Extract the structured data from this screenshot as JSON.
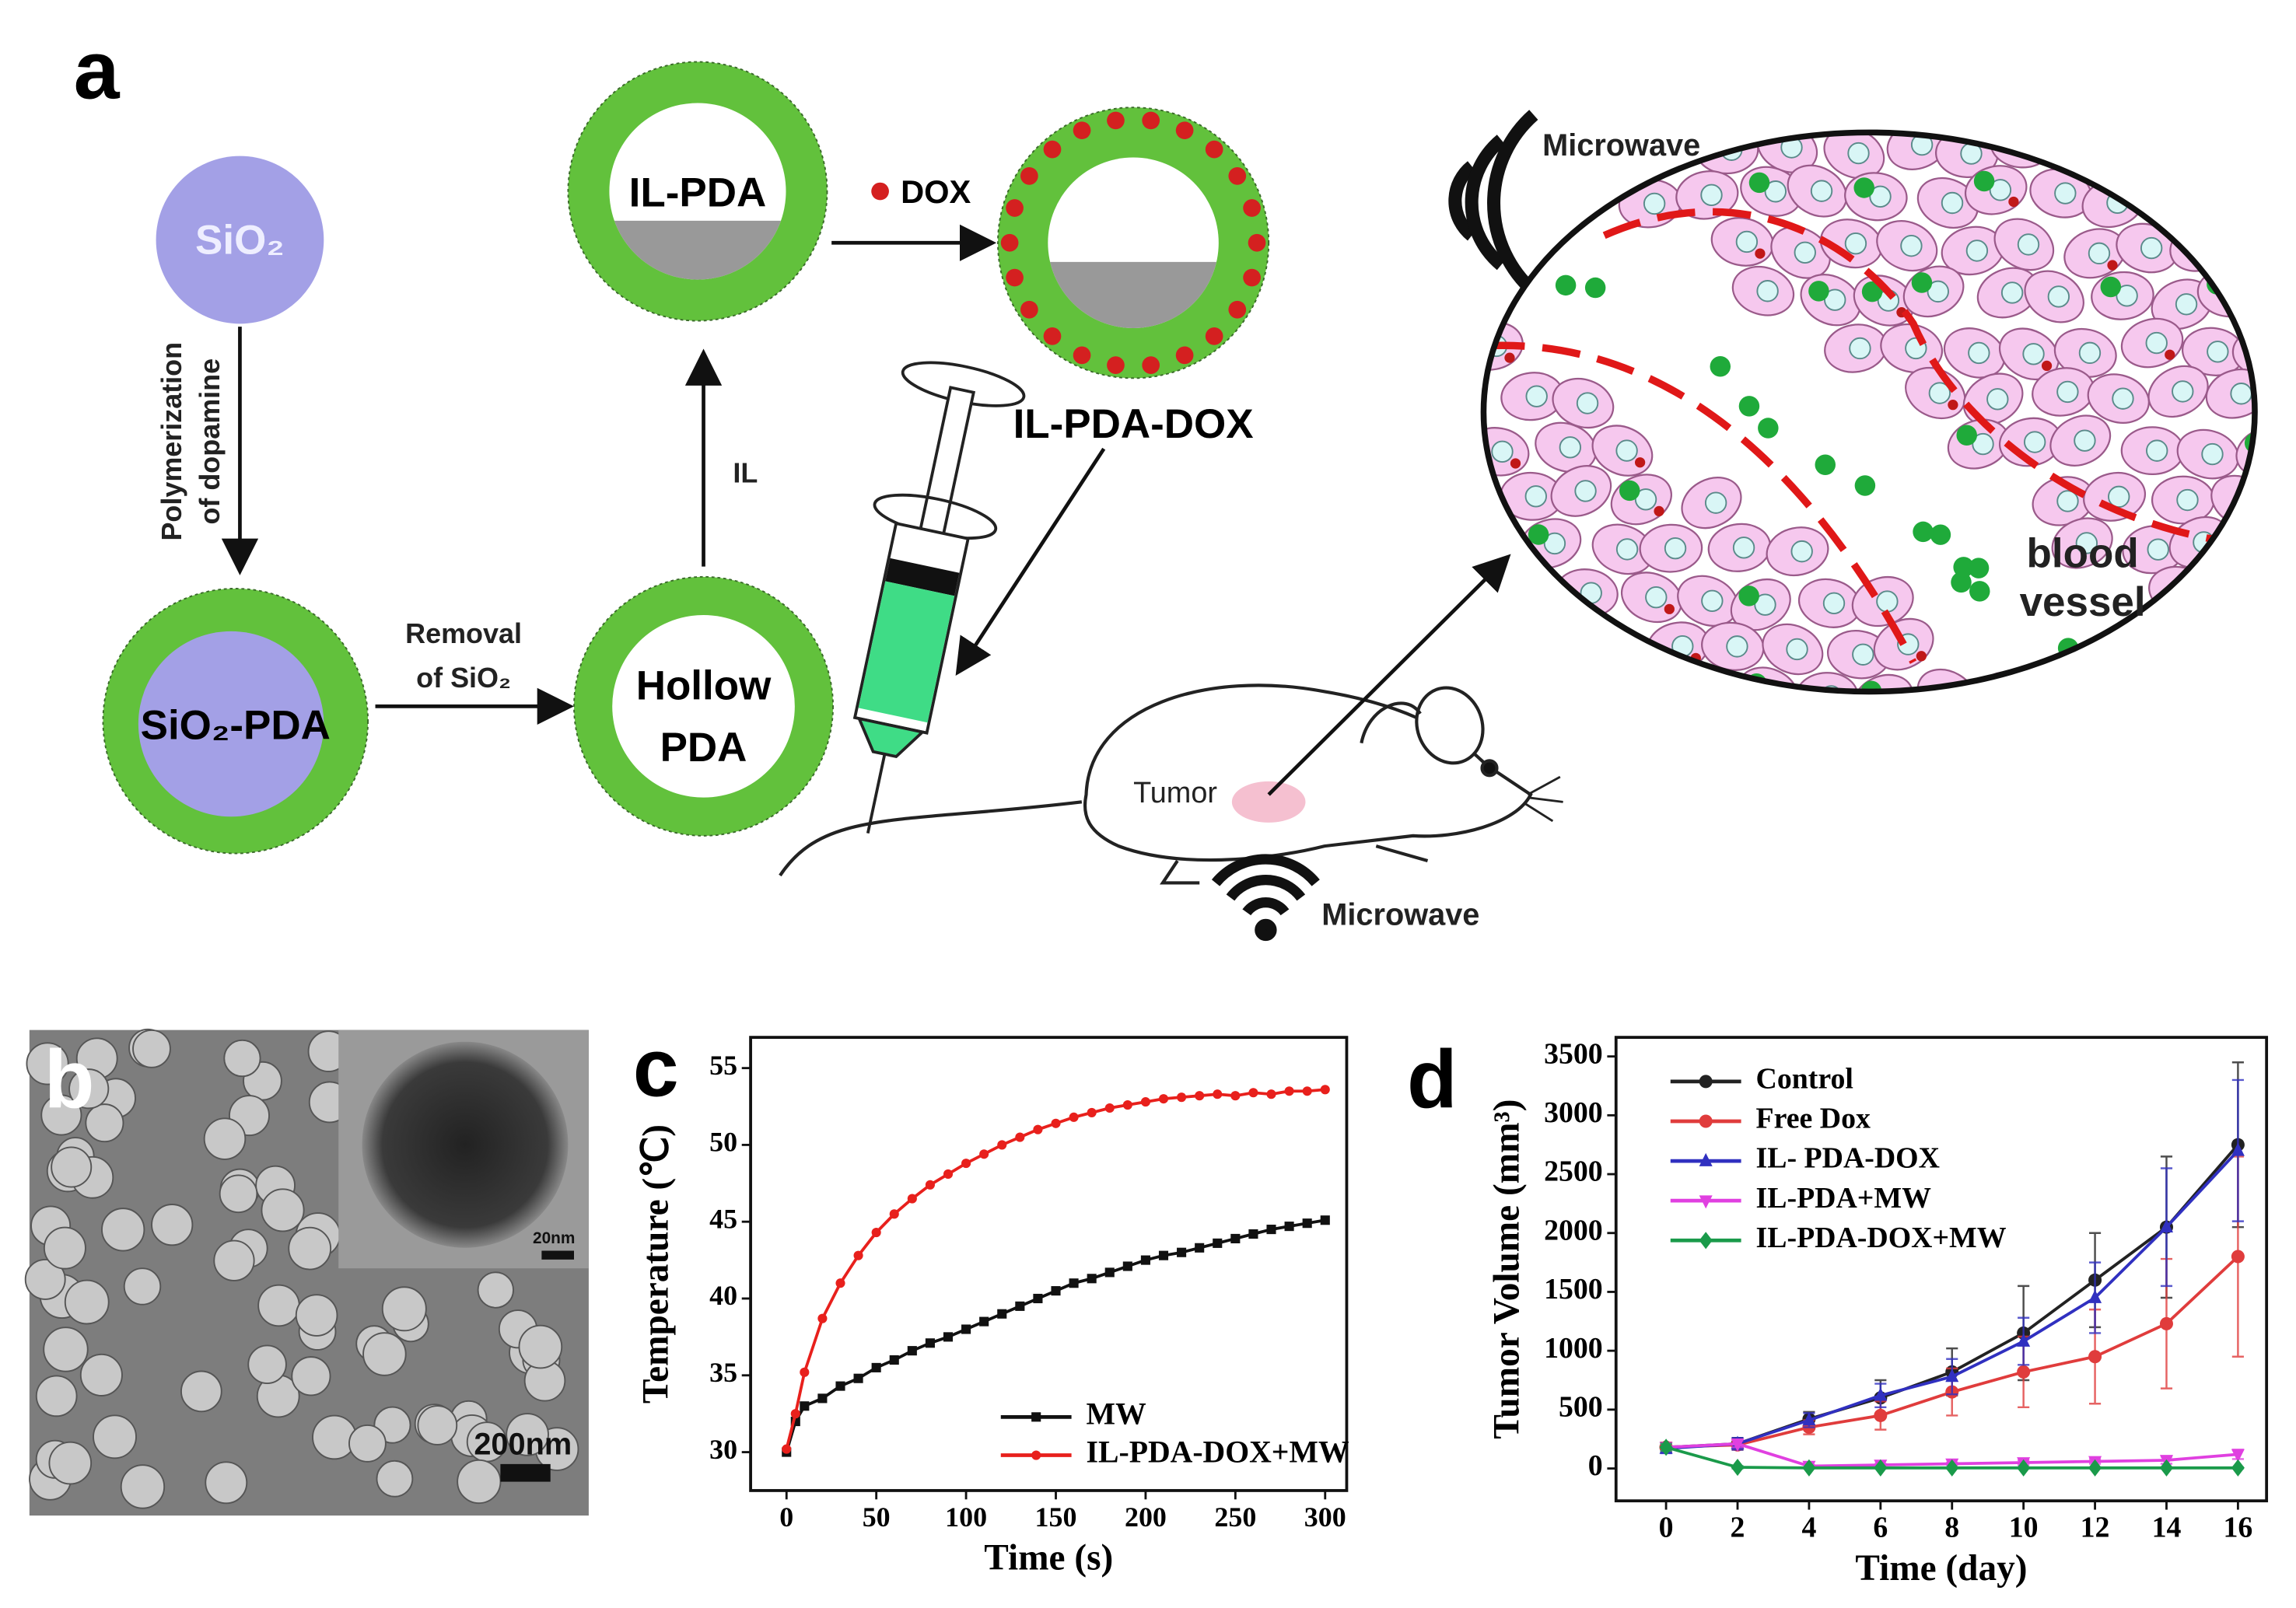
{
  "panel_labels": [
    "a",
    "b",
    "c",
    "d"
  ],
  "diagram": {
    "sio2": "SiO₂",
    "polymerization": [
      "Polymerization",
      "of dopamine"
    ],
    "sio2_pda": "SiO₂-PDA",
    "removal": [
      "Removal",
      "of SiO₂"
    ],
    "hollow_pda": [
      "Hollow",
      "PDA"
    ],
    "il": "IL",
    "il_pda": "IL-PDA",
    "dox": "DOX",
    "il_pda_dox": "IL-PDA-DOX",
    "microwave_top": "Microwave",
    "microwave_bottom": "Microwave",
    "tumor": "Tumor",
    "blood_vessel": [
      "blood",
      "vessel"
    ]
  },
  "micrograph": {
    "inset_scale": "20nm",
    "scale": "200nm"
  },
  "chart_data": [
    {
      "type": "line",
      "x": [
        0,
        5,
        10,
        20,
        30,
        40,
        50,
        60,
        70,
        80,
        90,
        100,
        110,
        120,
        130,
        140,
        150,
        160,
        170,
        180,
        190,
        200,
        210,
        220,
        230,
        240,
        250,
        260,
        270,
        280,
        290,
        300
      ],
      "x_label": "Time (s)",
      "y_label": "Temperature (℃)",
      "xlim": [
        -20,
        312
      ],
      "ylim": [
        27.5,
        57
      ],
      "xticks": [
        0,
        50,
        100,
        150,
        200,
        250,
        300
      ],
      "yticks": [
        30,
        35,
        40,
        45,
        50,
        55
      ],
      "legend": "lower right",
      "series": [
        {
          "name": "MW",
          "color": "#111111",
          "marker": "square",
          "values": [
            30,
            32,
            33,
            33.5,
            34.3,
            34.8,
            35.5,
            36,
            36.6,
            37.1,
            37.5,
            38,
            38.5,
            39,
            39.5,
            40,
            40.5,
            41,
            41.3,
            41.7,
            42.1,
            42.5,
            42.8,
            43,
            43.3,
            43.6,
            43.9,
            44.2,
            44.5,
            44.7,
            44.9,
            45.1
          ]
        },
        {
          "name": "IL-PDA-DOX+MW",
          "color": "#e8201c",
          "marker": "circle",
          "values": [
            30.2,
            32.5,
            35.2,
            38.7,
            41,
            42.8,
            44.3,
            45.5,
            46.5,
            47.4,
            48.1,
            48.8,
            49.4,
            50,
            50.5,
            51,
            51.4,
            51.8,
            52.1,
            52.4,
            52.6,
            52.8,
            53,
            53.1,
            53.2,
            53.3,
            53.2,
            53.4,
            53.3,
            53.5,
            53.5,
            53.6
          ]
        }
      ]
    },
    {
      "type": "line",
      "x": [
        0,
        2,
        4,
        6,
        8,
        10,
        12,
        14,
        16
      ],
      "x_label": "Time (day)",
      "y_label": "Tumor Volume (mm³)",
      "xlim": [
        -1.4,
        16.8
      ],
      "ylim": [
        -275,
        3662
      ],
      "xticks": [
        0,
        2,
        4,
        6,
        8,
        10,
        12,
        14,
        16
      ],
      "yticks": [
        0,
        500,
        1000,
        1500,
        2000,
        2500,
        3000,
        3500
      ],
      "legend": "upper left",
      "series": [
        {
          "name": "Control",
          "color": "#222222",
          "marker": "circle",
          "values": [
            180,
            210,
            420,
            600,
            820,
            1150,
            1600,
            2050,
            2750
          ],
          "errors": [
            40,
            50,
            60,
            150,
            200,
            400,
            400,
            600,
            700
          ]
        },
        {
          "name": "Free Dox",
          "color": "#e03c3c",
          "marker": "circle",
          "values": [
            180,
            200,
            350,
            450,
            650,
            820,
            950,
            1230,
            1800
          ],
          "errors": [
            40,
            40,
            60,
            120,
            200,
            300,
            400,
            550,
            850
          ]
        },
        {
          "name": "IL- PDA-DOX",
          "color": "#3030c0",
          "marker": "triangle",
          "values": [
            170,
            210,
            410,
            620,
            780,
            1080,
            1450,
            2050,
            2700
          ],
          "errors": [
            40,
            50,
            60,
            100,
            150,
            200,
            300,
            500,
            600
          ]
        },
        {
          "name": "IL-PDA+MW",
          "color": "#e040e0",
          "marker": "triangle-down",
          "values": [
            180,
            210,
            20,
            30,
            40,
            50,
            60,
            70,
            120
          ],
          "errors": [
            30,
            30,
            10,
            10,
            10,
            20,
            20,
            30,
            40
          ]
        },
        {
          "name": "IL-PDA-DOX+MW",
          "color": "#1a9a4a",
          "marker": "diamond",
          "values": [
            180,
            10,
            5,
            5,
            5,
            5,
            5,
            5,
            5
          ],
          "errors": [
            30,
            10,
            5,
            5,
            5,
            5,
            5,
            5,
            5
          ]
        }
      ]
    }
  ]
}
